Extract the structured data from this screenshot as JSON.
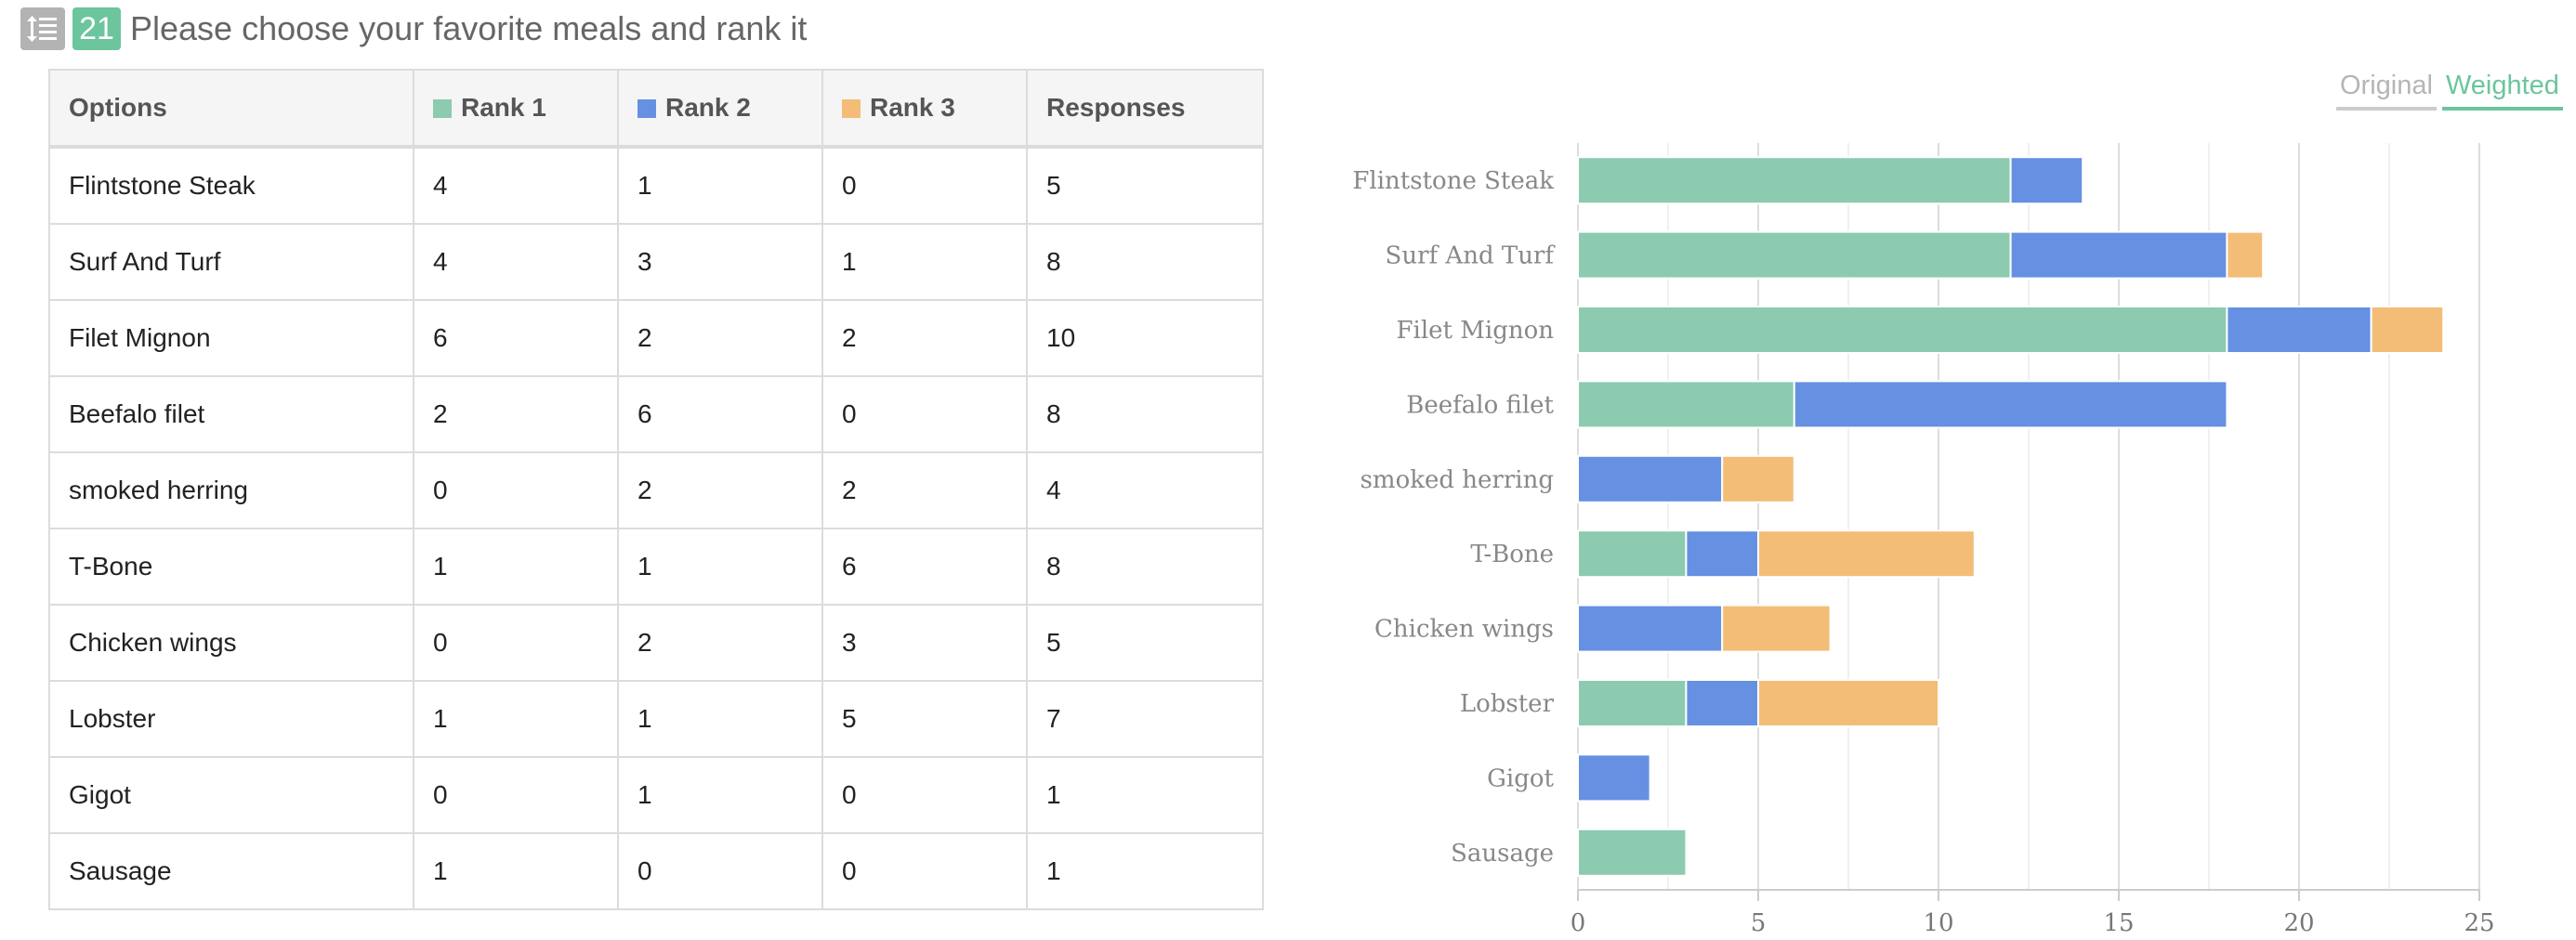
{
  "header": {
    "icon": "ranking-list-icon",
    "number": "21",
    "title": "Please choose your favorite meals and rank it"
  },
  "table": {
    "columns": [
      "Options",
      "Rank 1",
      "Rank 2",
      "Rank 3",
      "Responses"
    ],
    "rows": [
      [
        "Flintstone Steak",
        "4",
        "1",
        "0",
        "5"
      ],
      [
        "Surf And Turf",
        "4",
        "3",
        "1",
        "8"
      ],
      [
        "Filet Mignon",
        "6",
        "2",
        "2",
        "10"
      ],
      [
        "Beefalo filet",
        "2",
        "6",
        "0",
        "8"
      ],
      [
        "smoked herring",
        "0",
        "2",
        "2",
        "4"
      ],
      [
        "T-Bone",
        "1",
        "1",
        "6",
        "8"
      ],
      [
        "Chicken wings",
        "0",
        "2",
        "3",
        "5"
      ],
      [
        "Lobster",
        "1",
        "1",
        "5",
        "7"
      ],
      [
        "Gigot",
        "0",
        "1",
        "0",
        "1"
      ],
      [
        "Sausage",
        "1",
        "0",
        "0",
        "1"
      ]
    ]
  },
  "toggle": {
    "original_label": "Original",
    "weighted_label": "Weighted",
    "active": "Weighted"
  },
  "colors": {
    "rank1": "#8ccbb0",
    "rank2": "#6690e2",
    "rank3": "#f3bd78",
    "accent": "#6cc59c"
  },
  "chart_data": {
    "type": "bar",
    "orientation": "horizontal",
    "stacked": true,
    "categories": [
      "Flintstone Steak",
      "Surf And Turf",
      "Filet Mignon",
      "Beefalo filet",
      "smoked herring",
      "T-Bone",
      "Chicken wings",
      "Lobster",
      "Gigot",
      "Sausage"
    ],
    "series": [
      {
        "name": "Rank 1",
        "values": [
          12,
          12,
          18,
          6,
          0,
          3,
          0,
          3,
          0,
          3
        ]
      },
      {
        "name": "Rank 2",
        "values": [
          2,
          6,
          4,
          12,
          4,
          2,
          4,
          2,
          2,
          0
        ]
      },
      {
        "name": "Rank 3",
        "values": [
          0,
          1,
          2,
          0,
          2,
          6,
          3,
          5,
          0,
          0
        ]
      }
    ],
    "xlim": [
      0,
      25
    ],
    "xticks": [
      0,
      5,
      10,
      15,
      20,
      25
    ],
    "grid": true,
    "legend": "none"
  }
}
